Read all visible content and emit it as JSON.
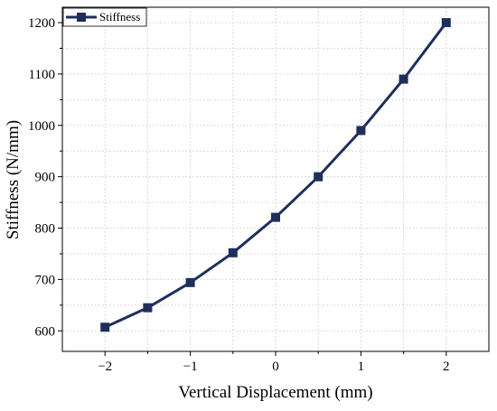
{
  "chart_data": {
    "type": "line",
    "title": "",
    "xlabel": "Vertical Displacement (mm)",
    "ylabel": "Stiffness (N/mm)",
    "xlim": [
      -2.5,
      2.5
    ],
    "ylim": [
      560,
      1230
    ],
    "xticks": [
      -2,
      -1,
      0,
      1,
      2
    ],
    "xtick_labels": [
      "−2",
      "−1",
      "0",
      "1",
      "2"
    ],
    "yticks": [
      600,
      700,
      800,
      900,
      1000,
      1100,
      1200
    ],
    "ytick_labels": [
      "600",
      "700",
      "800",
      "900",
      "1000",
      "1100",
      "1200"
    ],
    "grid": true,
    "legend": {
      "position": "top-left",
      "marker": "square"
    },
    "series": [
      {
        "name": "Stiffness",
        "color": "#1f2f5c",
        "marker": "square",
        "x": [
          -2,
          -1.5,
          -1,
          -0.5,
          0,
          0.5,
          1,
          1.5,
          2
        ],
        "y": [
          607,
          645,
          694,
          752,
          821,
          900,
          990,
          1090,
          1200
        ]
      }
    ]
  }
}
